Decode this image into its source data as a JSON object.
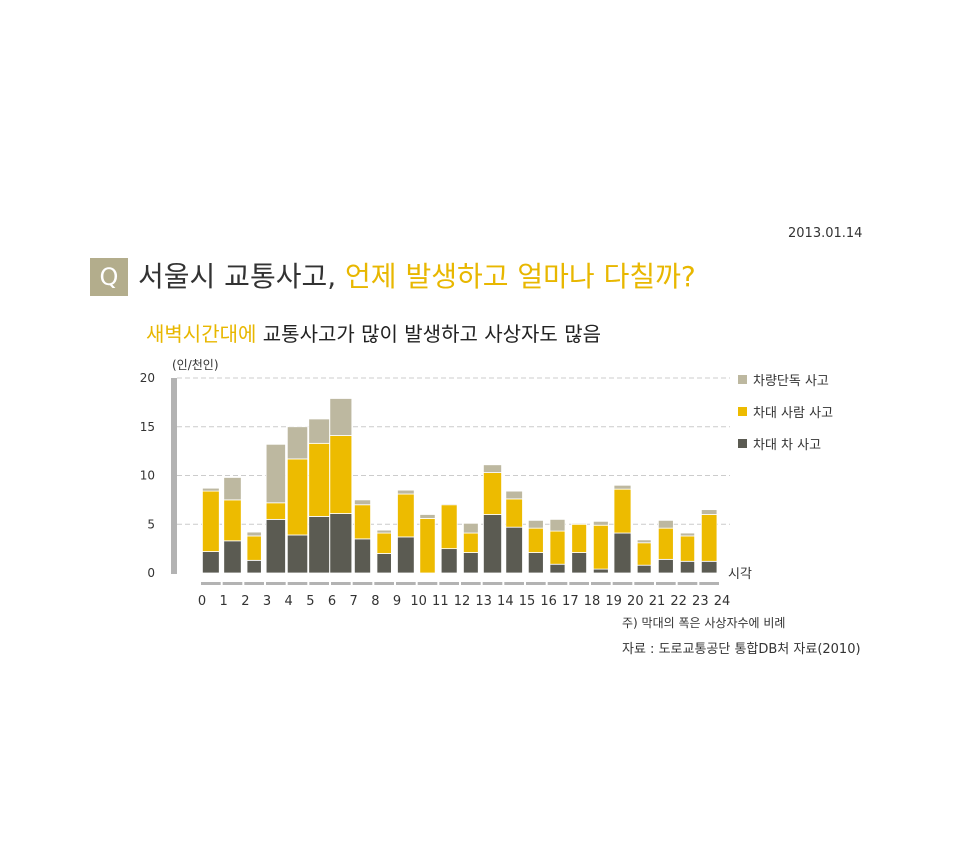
{
  "date": "2013.01.14",
  "q_badge": "Q",
  "title": {
    "plain": "서울시 교통사고, ",
    "highlight": "언제 발생하고 얼마나 다칠까?"
  },
  "subtitle": {
    "highlight": "새벽시간대에",
    "plain": " 교통사고가 많이 발생하고 사상자도 많음"
  },
  "unit": "(인/천인)",
  "note": "주)  막대의 폭은 사상자수에 비례",
  "source": "자료 :  도로교통공단 통합DB처 자료(2010)",
  "colors": {
    "single": "#bdb8a0",
    "pedestrian": "#edbb00",
    "car": "#5b5b52",
    "axis": "#b3b3b3",
    "grid": "#cccccc"
  },
  "chart_data": {
    "type": "bar",
    "stacked": true,
    "variable_width": true,
    "x_title": "시각",
    "categories": [
      "0",
      "1",
      "2",
      "3",
      "4",
      "5",
      "6",
      "7",
      "8",
      "9",
      "10",
      "11",
      "12",
      "13",
      "14",
      "15",
      "16",
      "17",
      "18",
      "19",
      "20",
      "21",
      "22",
      "23"
    ],
    "x_tick_labels": [
      "0",
      "1",
      "2",
      "3",
      "4",
      "5",
      "6",
      "7",
      "8",
      "9",
      "10",
      "11",
      "12",
      "13",
      "14",
      "15",
      "16",
      "17",
      "18",
      "19",
      "20",
      "21",
      "22",
      "23",
      "24"
    ],
    "ylim": [
      0,
      20
    ],
    "yticks": [
      0,
      5,
      10,
      15,
      20
    ],
    "grid": true,
    "legend_position": "right",
    "series": [
      {
        "name": "차량단독 사고",
        "key": "single",
        "values": [
          0.3,
          2.3,
          0.4,
          6.0,
          3.3,
          2.5,
          3.8,
          0.5,
          0.3,
          0.4,
          0.4,
          0.1,
          1.0,
          0.8,
          0.8,
          0.8,
          1.2,
          0.1,
          0.4,
          0.4,
          0.3,
          0.8,
          0.3,
          0.5
        ]
      },
      {
        "name": "차대 사람 사고",
        "key": "pedestrian",
        "values": [
          6.2,
          4.2,
          2.5,
          1.7,
          7.8,
          7.5,
          8.0,
          3.5,
          2.1,
          4.4,
          5.6,
          4.5,
          2.0,
          4.3,
          2.9,
          2.5,
          3.4,
          2.9,
          4.5,
          4.5,
          2.3,
          3.2,
          2.6,
          4.8
        ]
      },
      {
        "name": "차대 차 사고",
        "key": "car",
        "values": [
          2.2,
          3.3,
          1.3,
          5.5,
          3.9,
          5.8,
          6.1,
          3.5,
          2.0,
          3.7,
          0.0,
          2.5,
          2.1,
          6.0,
          4.7,
          2.1,
          0.9,
          2.1,
          0.4,
          4.1,
          0.8,
          1.4,
          1.2,
          1.2
        ]
      }
    ]
  },
  "legend": [
    {
      "label": "차량단독 사고",
      "color": "#bdb8a0"
    },
    {
      "label": "차대 사람 사고",
      "color": "#edbb00"
    },
    {
      "label": "차대 차 사고",
      "color": "#5b5b52"
    }
  ]
}
